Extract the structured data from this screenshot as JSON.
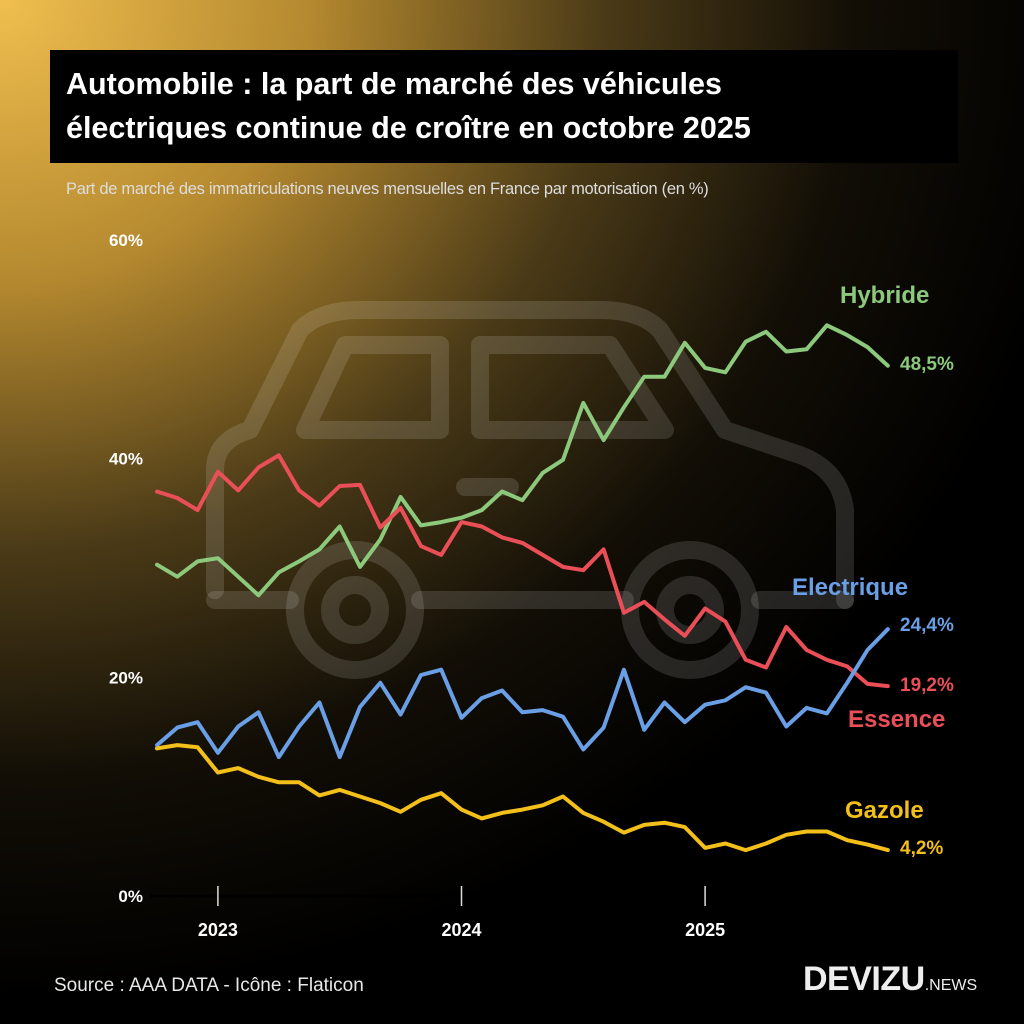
{
  "title": {
    "line1": "Automobile : la part de marché des véhicules",
    "line2": "électriques continue de croître en octobre 2025"
  },
  "subtitle": "Part de marché des immatriculations neuves mensuelles en France par motorisation (en %)",
  "source": "Source : AAA DATA - Icône : Flaticon",
  "logo": {
    "main": "DEVIZU",
    "sub": ".NEWS"
  },
  "background_icon": "car-icon",
  "chart_data": {
    "type": "line",
    "x_start": "2022-10",
    "x_end": "2025-10",
    "x_frequency": "monthly",
    "x_ticks": [
      "2023",
      "2024",
      "2025"
    ],
    "y_ticks": [
      "0%",
      "20%",
      "40%",
      "60%"
    ],
    "ylim": [
      0,
      60
    ],
    "grid": false,
    "legend": "inline labels at line ends",
    "series": [
      {
        "name": "Hybride",
        "color": "#8cc97c",
        "end_label": "48,5%",
        "values": [
          30.3,
          29.2,
          30.6,
          30.9,
          29.2,
          27.5,
          29.6,
          30.6,
          31.7,
          33.8,
          30.1,
          32.6,
          36.5,
          33.9,
          34.2,
          34.6,
          35.3,
          37.0,
          36.2,
          38.7,
          39.9,
          45.1,
          41.7,
          44.7,
          47.5,
          47.5,
          50.6,
          48.3,
          47.9,
          50.7,
          51.6,
          49.8,
          50.0,
          52.2,
          51.3,
          50.2,
          48.5
        ]
      },
      {
        "name": "Essence",
        "color": "#ea4f58",
        "end_label": "19,2%",
        "values": [
          37.0,
          36.4,
          35.3,
          38.8,
          37.1,
          39.2,
          40.3,
          37.1,
          35.7,
          37.5,
          37.6,
          33.7,
          35.5,
          32.0,
          31.2,
          34.2,
          33.8,
          32.8,
          32.3,
          31.2,
          30.1,
          29.8,
          31.7,
          25.9,
          26.9,
          25.3,
          23.8,
          26.3,
          25.1,
          21.6,
          20.9,
          24.6,
          22.5,
          21.6,
          21.0,
          19.4,
          19.2
        ]
      },
      {
        "name": "Electrique",
        "color": "#6a9fe6",
        "end_label": "24,4%",
        "values": [
          13.8,
          15.4,
          15.9,
          13.1,
          15.5,
          16.8,
          12.7,
          15.5,
          17.7,
          12.7,
          17.3,
          19.5,
          16.6,
          20.2,
          20.7,
          16.3,
          18.1,
          18.8,
          16.8,
          17.0,
          16.4,
          13.4,
          15.4,
          20.7,
          15.2,
          17.7,
          15.9,
          17.5,
          17.9,
          19.1,
          18.6,
          15.5,
          17.2,
          16.7,
          19.5,
          22.5,
          24.4
        ]
      },
      {
        "name": "Gazole",
        "color": "#f3bf1a",
        "end_label": "4,2%",
        "values": [
          13.5,
          13.8,
          13.6,
          11.3,
          11.7,
          10.9,
          10.4,
          10.4,
          9.2,
          9.7,
          9.1,
          8.5,
          7.7,
          8.8,
          9.4,
          7.9,
          7.1,
          7.6,
          7.9,
          8.3,
          9.1,
          7.6,
          6.8,
          5.8,
          6.5,
          6.7,
          6.3,
          4.4,
          4.8,
          4.2,
          4.8,
          5.6,
          5.9,
          5.9,
          5.1,
          4.7,
          4.2
        ]
      }
    ]
  }
}
